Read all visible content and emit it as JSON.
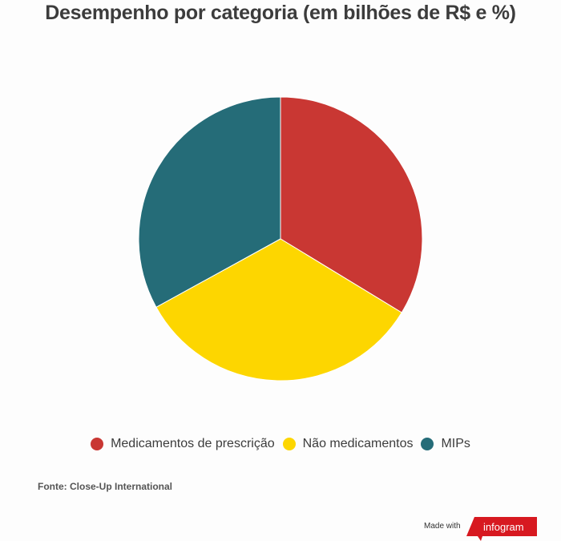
{
  "chart_data": {
    "type": "pie",
    "title": "Desempenho por categoria (em bilhões de R$ e %)",
    "categories": [
      "Medicamentos de prescrição",
      "Não medicamentos",
      "MIPs"
    ],
    "values": [
      33.7,
      33.3,
      33.0
    ],
    "unit": "% (estimated from slice angles)",
    "colors": [
      "#c93733",
      "#fdd600",
      "#256c78"
    ],
    "legend_position": "bottom"
  },
  "source": "Fonte: Close-Up International",
  "footer": {
    "made_with": "Made with",
    "brand": "infogram",
    "brand_color": "#d71920"
  }
}
